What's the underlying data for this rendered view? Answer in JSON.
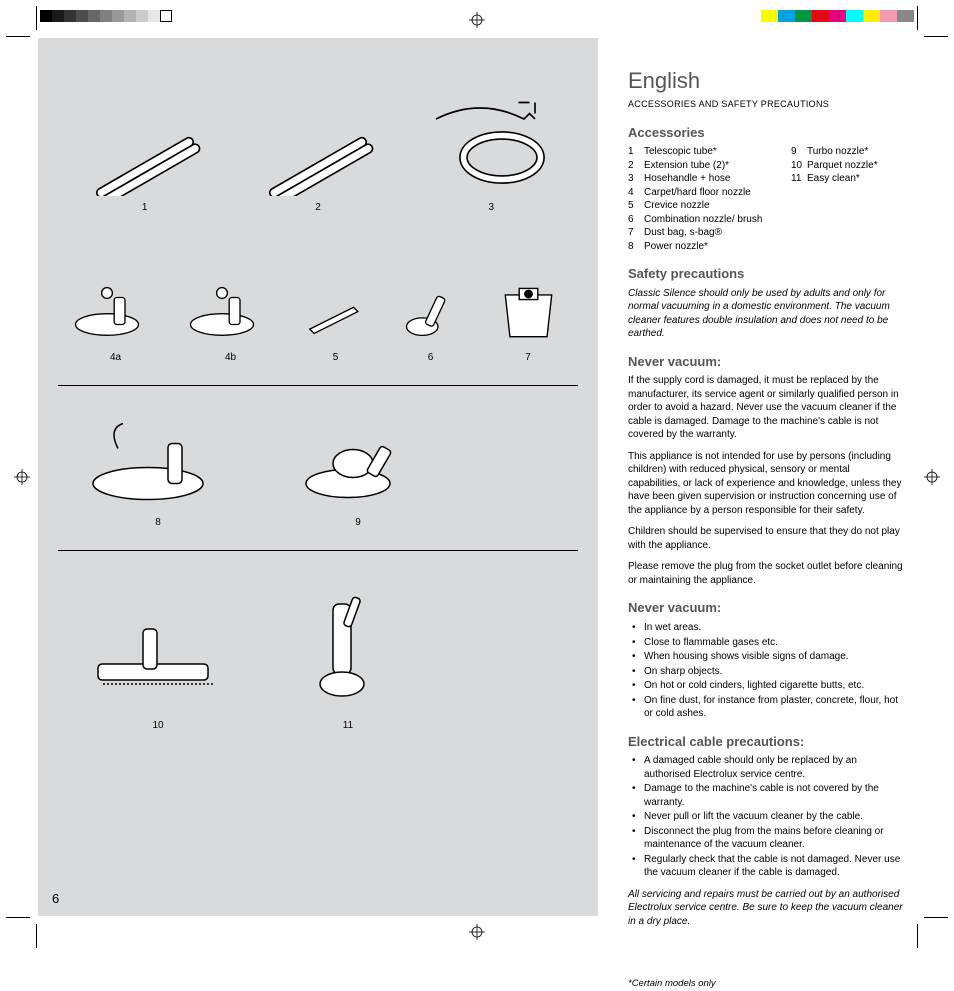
{
  "printMarks": {
    "grayscale": [
      "#000000",
      "#1a1a1a",
      "#333333",
      "#4d4d4d",
      "#666666",
      "#808080",
      "#999999",
      "#b3b3b3",
      "#cccccc",
      "#e6e6e6",
      "#ffffff"
    ],
    "colorBar": [
      "#ffff00",
      "#00a0e3",
      "#009640",
      "#e30613",
      "#e6007e",
      "#00ffff",
      "#ffed00",
      "#f39ab2",
      "#878787"
    ]
  },
  "leftPanel": {
    "background": "#d9dadb",
    "figures": {
      "row1": [
        {
          "label": "1",
          "desc": "telescopic-tube"
        },
        {
          "label": "2",
          "desc": "extension-tube"
        },
        {
          "label": "3",
          "desc": "hose-handle"
        }
      ],
      "row2": [
        {
          "label": "4a",
          "desc": "floor-nozzle-a"
        },
        {
          "label": "4b",
          "desc": "floor-nozzle-b"
        },
        {
          "label": "5",
          "desc": "crevice-nozzle"
        },
        {
          "label": "6",
          "desc": "combination-nozzle"
        },
        {
          "label": "7",
          "desc": "dust-bag"
        }
      ],
      "row3": [
        {
          "label": "8",
          "desc": "power-nozzle"
        },
        {
          "label": "9",
          "desc": "turbo-nozzle"
        }
      ],
      "row4": [
        {
          "label": "10",
          "desc": "parquet-nozzle"
        },
        {
          "label": "11",
          "desc": "easy-clean"
        }
      ]
    },
    "pageNumber": "6"
  },
  "text": {
    "lang": "English",
    "subtitle": "ACCESSORIES AND SAFETY PRECAUTIONS",
    "accessoriesHeading": "Accessories",
    "accessoriesLeft": [
      {
        "n": "1",
        "t": "Telescopic tube*"
      },
      {
        "n": "2",
        "t": "Extension tube (2)*"
      },
      {
        "n": "3",
        "t": "Hosehandle + hose"
      },
      {
        "n": "4",
        "t": "Carpet/hard floor nozzle"
      },
      {
        "n": "5",
        "t": "Crevice nozzle"
      },
      {
        "n": "6",
        "t": "Combination nozzle/ brush"
      },
      {
        "n": "7",
        "t": "Dust bag, s-bag®"
      },
      {
        "n": "8",
        "t": "Power nozzle*"
      }
    ],
    "accessoriesRight": [
      {
        "n": "9",
        "t": "Turbo nozzle*"
      },
      {
        "n": "10",
        "t": "Parquet nozzle*"
      },
      {
        "n": "11",
        "t": "Easy clean*"
      }
    ],
    "safetyHeading": "Safety precautions",
    "safetyIntro": "Classic Silence should only be used by adults and only for normal vacuuming in a domestic environment. The vacuum cleaner features double insulation and does not need to be earthed.",
    "never1Heading": "Never vacuum:",
    "never1Paras": [
      "If the supply cord is damaged, it must be replaced by the manufacturer, its service agent or similarly qualified person in order to avoid a hazard. Never use the vacuum cleaner if the cable is damaged. Damage to the machine's cable is not covered by the warranty.",
      "This appliance is not intended for use by persons (including children) with reduced physical, sensory or mental capabilities, or lack of experience and knowledge, unless they have been given supervision or instruction concerning use of the appliance by a person responsible for their safety.",
      "Children should be supervised to ensure that they do not play with the appliance.",
      "Please remove the plug from the socket outlet before cleaning or maintaining the appliance."
    ],
    "never2Heading": "Never vacuum:",
    "never2Bullets": [
      "In wet areas.",
      "Close to flammable gases etc.",
      "When housing shows visible signs of damage.",
      "On sharp objects.",
      "On hot or cold cinders, lighted cigarette butts, etc.",
      "On fine dust, for instance from plaster, concrete, flour, hot or cold ashes."
    ],
    "elecHeading": "Electrical cable precautions:",
    "elecBullets": [
      "A damaged cable should only be replaced by an authorised Electrolux service centre.",
      "Damage to the machine's cable is not covered by the warranty.",
      "Never pull or lift the vacuum cleaner by the cable.",
      "Disconnect the plug from the mains before cleaning or maintenance of the vacuum cleaner.",
      "Regularly check that the cable is not damaged. Never use the vacuum cleaner if the cable is damaged."
    ],
    "closingItalic": "All servicing and repairs must be carried out by an authorised Electrolux service centre. Be sure to keep the vacuum cleaner in a dry place.",
    "footnote": "*Certain models only"
  }
}
